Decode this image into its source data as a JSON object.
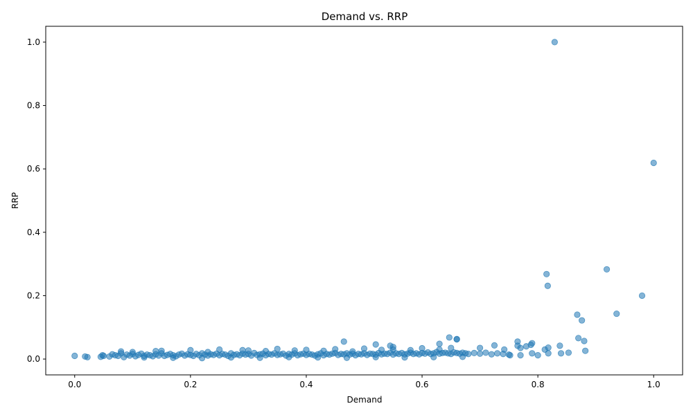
{
  "chart_data": {
    "type": "scatter",
    "title": "Demand vs. RRP",
    "xlabel": "Demand",
    "ylabel": "RRP",
    "xlim": [
      -0.05,
      1.05
    ],
    "ylim": [
      -0.05,
      1.05
    ],
    "xticks": [
      "0.0",
      "0.2",
      "0.4",
      "0.6",
      "0.8",
      "1.0"
    ],
    "yticks": [
      "0.0",
      "0.2",
      "0.4",
      "0.6",
      "0.8",
      "1.0"
    ],
    "grid": false,
    "point_color": "#1f77b4",
    "point_opacity": 0.55,
    "series": [
      {
        "x": [
          0.0,
          0.018,
          0.022,
          0.045,
          0.048,
          0.05,
          0.06,
          0.065,
          0.07,
          0.075,
          0.08,
          0.085,
          0.09,
          0.095,
          0.1,
          0.105,
          0.11,
          0.115,
          0.12,
          0.125,
          0.13,
          0.135,
          0.14,
          0.145,
          0.15,
          0.155,
          0.16,
          0.165,
          0.17,
          0.175,
          0.18,
          0.185,
          0.19,
          0.195,
          0.2,
          0.205,
          0.21,
          0.215,
          0.22,
          0.225,
          0.23,
          0.235,
          0.24,
          0.245,
          0.25,
          0.255,
          0.26,
          0.265,
          0.27,
          0.275,
          0.28,
          0.285,
          0.29,
          0.295,
          0.3,
          0.305,
          0.31,
          0.315,
          0.32,
          0.325,
          0.33,
          0.335,
          0.34,
          0.345,
          0.35,
          0.355,
          0.36,
          0.365,
          0.37,
          0.375,
          0.38,
          0.385,
          0.39,
          0.395,
          0.4,
          0.405,
          0.41,
          0.415,
          0.42,
          0.425,
          0.43,
          0.435,
          0.44,
          0.445,
          0.45,
          0.455,
          0.46,
          0.465,
          0.47,
          0.475,
          0.48,
          0.485,
          0.49,
          0.495,
          0.5,
          0.505,
          0.51,
          0.515,
          0.52,
          0.525,
          0.53,
          0.535,
          0.54,
          0.545,
          0.55,
          0.555,
          0.56,
          0.565,
          0.57,
          0.575,
          0.58,
          0.585,
          0.59,
          0.595,
          0.6,
          0.605,
          0.61,
          0.615,
          0.62,
          0.625,
          0.63,
          0.635,
          0.64,
          0.645,
          0.65,
          0.655,
          0.66,
          0.665,
          0.67,
          0.675,
          0.68,
          0.69,
          0.7,
          0.71,
          0.72,
          0.73,
          0.74,
          0.75,
          0.1,
          0.14,
          0.2,
          0.25,
          0.3,
          0.35,
          0.4,
          0.45,
          0.5,
          0.55,
          0.6,
          0.65,
          0.12,
          0.17,
          0.22,
          0.27,
          0.32,
          0.37,
          0.42,
          0.47,
          0.52,
          0.57,
          0.62,
          0.67,
          0.08,
          0.15,
          0.23,
          0.29,
          0.33,
          0.38,
          0.43,
          0.48,
          0.53,
          0.58,
          0.63,
          0.465,
          0.52,
          0.545,
          0.55,
          0.63,
          0.647,
          0.66,
          0.66,
          0.7,
          0.725,
          0.742,
          0.765,
          0.765,
          0.77,
          0.78,
          0.788,
          0.79,
          0.8,
          0.812,
          0.818,
          0.818,
          0.838,
          0.84,
          0.853,
          0.868,
          0.87,
          0.876,
          0.88,
          0.882,
          0.79,
          0.752,
          0.77,
          0.815,
          0.817,
          0.829,
          0.919,
          0.936,
          0.98,
          1.0
        ],
        "y": [
          0.01,
          0.008,
          0.006,
          0.007,
          0.012,
          0.01,
          0.008,
          0.015,
          0.012,
          0.01,
          0.018,
          0.006,
          0.014,
          0.011,
          0.016,
          0.009,
          0.013,
          0.017,
          0.01,
          0.014,
          0.012,
          0.009,
          0.015,
          0.011,
          0.018,
          0.01,
          0.013,
          0.016,
          0.012,
          0.009,
          0.014,
          0.017,
          0.011,
          0.015,
          0.013,
          0.01,
          0.016,
          0.012,
          0.018,
          0.014,
          0.011,
          0.015,
          0.013,
          0.017,
          0.012,
          0.016,
          0.014,
          0.01,
          0.018,
          0.013,
          0.015,
          0.012,
          0.017,
          0.014,
          0.016,
          0.011,
          0.019,
          0.013,
          0.015,
          0.017,
          0.012,
          0.016,
          0.014,
          0.018,
          0.013,
          0.015,
          0.017,
          0.011,
          0.016,
          0.014,
          0.018,
          0.012,
          0.015,
          0.017,
          0.013,
          0.016,
          0.014,
          0.011,
          0.015,
          0.018,
          0.012,
          0.016,
          0.014,
          0.017,
          0.019,
          0.013,
          0.016,
          0.015,
          0.018,
          0.014,
          0.017,
          0.012,
          0.016,
          0.015,
          0.018,
          0.013,
          0.017,
          0.016,
          0.014,
          0.019,
          0.015,
          0.017,
          0.016,
          0.02,
          0.014,
          0.018,
          0.016,
          0.019,
          0.015,
          0.017,
          0.02,
          0.016,
          0.018,
          0.015,
          0.019,
          0.017,
          0.021,
          0.016,
          0.018,
          0.022,
          0.017,
          0.019,
          0.02,
          0.018,
          0.016,
          0.021,
          0.019,
          0.017,
          0.02,
          0.018,
          0.016,
          0.019,
          0.017,
          0.02,
          0.015,
          0.018,
          0.016,
          0.014,
          0.022,
          0.025,
          0.028,
          0.03,
          0.027,
          0.032,
          0.029,
          0.031,
          0.033,
          0.03,
          0.034,
          0.035,
          0.005,
          0.004,
          0.003,
          0.005,
          0.004,
          0.006,
          0.005,
          0.004,
          0.006,
          0.005,
          0.006,
          0.007,
          0.024,
          0.026,
          0.022,
          0.028,
          0.025,
          0.027,
          0.026,
          0.024,
          0.029,
          0.028,
          0.03,
          0.055,
          0.046,
          0.042,
          0.038,
          0.048,
          0.068,
          0.063,
          0.062,
          0.035,
          0.043,
          0.03,
          0.055,
          0.042,
          0.012,
          0.04,
          0.045,
          0.05,
          0.012,
          0.03,
          0.036,
          0.018,
          0.042,
          0.018,
          0.02,
          0.14,
          0.066,
          0.122,
          0.057,
          0.026,
          0.018,
          0.012,
          0.035,
          0.268,
          0.231,
          1.0,
          0.283,
          0.143,
          0.2,
          0.619
        ]
      }
    ]
  }
}
